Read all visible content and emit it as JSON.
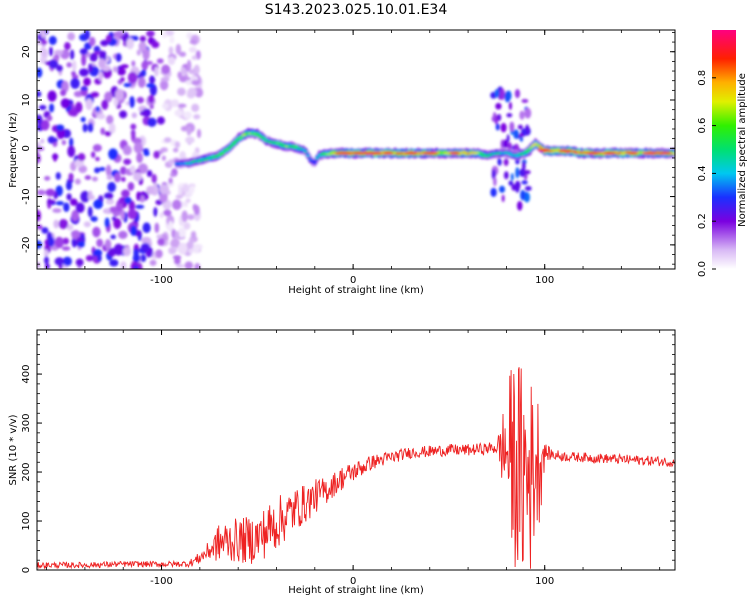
{
  "title": "S143.2023.025.10.01.E34",
  "chart_data": [
    {
      "type": "heatmap",
      "title": "S143.2023.025.10.01.E34",
      "xlabel": "Height of straight line (km)",
      "ylabel": "Frequency (Hz)",
      "xlim": [
        -165,
        168
      ],
      "ylim": [
        -25,
        24.5
      ],
      "xticks": [
        "-100",
        "0",
        "100"
      ],
      "yticks": [
        "-20",
        "-10",
        "0",
        "10",
        "20"
      ],
      "colorbar": {
        "label": "Normalized spectral amplitude",
        "ticks": [
          "0.0",
          "0.2",
          "0.4",
          "0.6",
          "0.8"
        ],
        "range": [
          0,
          1
        ],
        "colormap": "white-purple-blue-cyan-green-yellow-orange-red-magenta"
      },
      "ridge": {
        "x": [
          -92,
          -85,
          -80,
          -75,
          -70,
          -65,
          -60,
          -55,
          -50,
          -45,
          -40,
          -35,
          -30,
          -25,
          -22,
          -20,
          -18,
          -15,
          -10,
          -5,
          0,
          10,
          20,
          30,
          40,
          50,
          60,
          65,
          70,
          75,
          80,
          85,
          90,
          95,
          100,
          110,
          120,
          130,
          140,
          150,
          160,
          168
        ],
        "frequency": [
          -3.2,
          -3.0,
          -2.5,
          -2.0,
          -1.5,
          0,
          2.0,
          3.2,
          3.0,
          1.5,
          1.0,
          0.5,
          0.2,
          -0.5,
          -2.5,
          -3.0,
          -1.5,
          -1.2,
          -1.0,
          -1.0,
          -1.0,
          -1.0,
          -1.0,
          -1.0,
          -1.0,
          -1.0,
          -1.0,
          -1.0,
          -1.5,
          -1.0,
          -1.0,
          -1.5,
          -1.0,
          1.0,
          -0.5,
          -0.5,
          -1.0,
          -1.0,
          -1.0,
          -1.0,
          -1.0,
          -1.0
        ],
        "amplitude": [
          0.35,
          0.45,
          0.5,
          0.5,
          0.55,
          0.6,
          0.6,
          0.65,
          0.55,
          0.5,
          0.55,
          0.6,
          0.55,
          0.4,
          0.35,
          0.35,
          0.45,
          0.6,
          0.7,
          0.8,
          0.85,
          0.85,
          0.8,
          0.85,
          0.75,
          0.7,
          0.75,
          0.65,
          0.5,
          0.45,
          0.4,
          0.45,
          0.55,
          0.65,
          0.8,
          0.85,
          0.85,
          0.8,
          0.85,
          0.75,
          0.7,
          0.65
        ]
      },
      "noise_region": {
        "x_range": [
          -165,
          -80
        ],
        "amplitude": 0.25
      },
      "disturbance": {
        "x_range": [
          65,
          100
        ],
        "frequency_range": [
          -12,
          12
        ]
      }
    },
    {
      "type": "line",
      "xlabel": "Height of straight line (km)",
      "ylabel": "SNR (10 * v/v)",
      "xlim": [
        -165,
        168
      ],
      "ylim": [
        0,
        490
      ],
      "xticks": [
        "-100",
        "0",
        "100"
      ],
      "yticks": [
        "0",
        "100",
        "200",
        "300",
        "400"
      ],
      "series": [
        {
          "color": "#ee2222",
          "x": [
            -165,
            -140,
            -120,
            -100,
            -90,
            -85,
            -80,
            -75,
            -70,
            -65,
            -60,
            -55,
            -50,
            -45,
            -40,
            -35,
            -30,
            -25,
            -20,
            -15,
            -10,
            -5,
            0,
            5,
            10,
            15,
            20,
            25,
            30,
            40,
            50,
            60,
            70,
            75,
            80,
            83,
            86,
            88,
            90,
            92,
            95,
            98,
            100,
            102,
            105,
            110,
            120,
            130,
            140,
            150,
            160,
            168
          ],
          "values": [
            10,
            10,
            12,
            12,
            12,
            14,
            25,
            40,
            55,
            60,
            60,
            60,
            65,
            80,
            95,
            110,
            125,
            135,
            150,
            160,
            175,
            190,
            200,
            210,
            220,
            225,
            230,
            235,
            240,
            242,
            245,
            245,
            248,
            250,
            245,
            230,
            210,
            190,
            200,
            180,
            220,
            230,
            240,
            238,
            235,
            232,
            230,
            228,
            226,
            224,
            222,
            220
          ],
          "spread": [
            6,
            6,
            6,
            6,
            6,
            8,
            12,
            20,
            40,
            45,
            45,
            50,
            50,
            55,
            55,
            50,
            45,
            40,
            35,
            30,
            25,
            25,
            20,
            18,
            15,
            14,
            14,
            12,
            12,
            12,
            12,
            12,
            12,
            14,
            120,
            200,
            230,
            230,
            230,
            220,
            160,
            120,
            20,
            14,
            12,
            10,
            10,
            10,
            10,
            10,
            10,
            10
          ]
        }
      ]
    }
  ]
}
